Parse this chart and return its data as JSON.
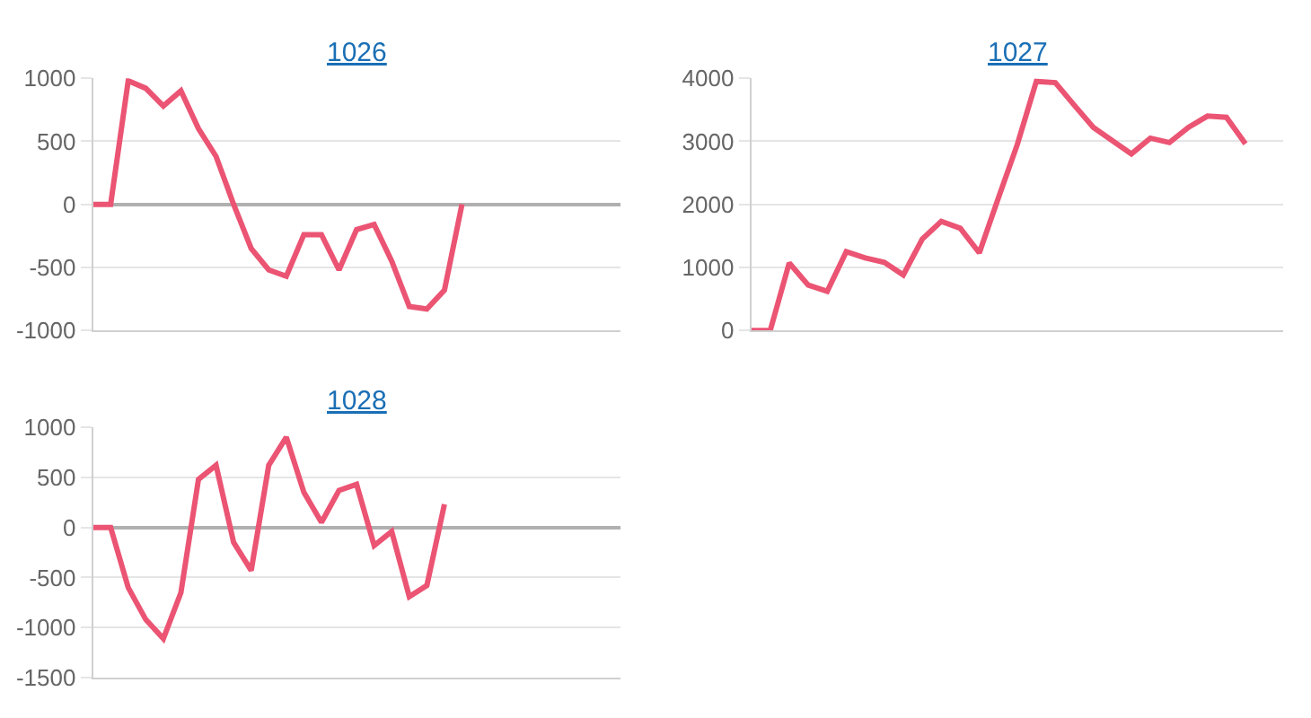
{
  "chart_data": [
    {
      "type": "line",
      "title": "1026",
      "categories": [
        null,
        null,
        null,
        null,
        null,
        null,
        null,
        null,
        null,
        null,
        null,
        null,
        null,
        null,
        null,
        null,
        null,
        null,
        null,
        null,
        null,
        null,
        null,
        null,
        null,
        null,
        null,
        null,
        null,
        null,
        null
      ],
      "series": [
        {
          "color": "#eb5473",
          "values": [
            0,
            0,
            980,
            920,
            780,
            900,
            600,
            380,
            0,
            -350,
            -520,
            -570,
            -240,
            -240,
            -520,
            -200,
            -160,
            -450,
            -810,
            -830,
            -680,
            0,
            null,
            null,
            null,
            null,
            null,
            null,
            null,
            null,
            null
          ]
        }
      ],
      "ylim": [
        -1000,
        1000
      ],
      "yticks": [
        -1000,
        -500,
        0,
        500,
        1000
      ],
      "grid": "y",
      "tick_labels": "y",
      "marker": "none"
    },
    {
      "type": "line",
      "title": "1027",
      "categories": [
        null,
        null,
        null,
        null,
        null,
        null,
        null,
        null,
        null,
        null,
        null,
        null,
        null,
        null,
        null,
        null,
        null,
        null,
        null,
        null,
        null,
        null,
        null,
        null,
        null,
        null,
        null,
        null,
        null
      ],
      "series": [
        {
          "color": "#eb5473",
          "values": [
            0,
            0,
            1070,
            720,
            620,
            1250,
            1150,
            1080,
            880,
            1450,
            1730,
            1620,
            1230,
            2100,
            2950,
            3950,
            3930,
            3570,
            3220,
            3010,
            2800,
            3050,
            2980,
            3220,
            3400,
            3380,
            2960,
            null,
            null
          ]
        }
      ],
      "ylim": [
        0,
        4000
      ],
      "yticks": [
        0,
        1000,
        2000,
        3000,
        4000
      ],
      "grid": "y",
      "tick_labels": "y",
      "marker": "none"
    },
    {
      "type": "line",
      "title": "1028",
      "categories": [
        null,
        null,
        null,
        null,
        null,
        null,
        null,
        null,
        null,
        null,
        null,
        null,
        null,
        null,
        null,
        null,
        null,
        null,
        null,
        null,
        null,
        null,
        null,
        null,
        null,
        null,
        null,
        null,
        null,
        null,
        null
      ],
      "series": [
        {
          "color": "#eb5473",
          "values": [
            0,
            0,
            -600,
            -920,
            -1110,
            -650,
            480,
            620,
            -150,
            -430,
            620,
            900,
            350,
            50,
            370,
            430,
            -180,
            -40,
            -690,
            -580,
            230,
            null,
            null,
            null,
            null,
            null,
            null,
            null,
            null,
            null,
            null
          ]
        }
      ],
      "ylim": [
        -1500,
        1000
      ],
      "yticks": [
        -1500,
        -1000,
        -500,
        0,
        500,
        1000
      ],
      "grid": "y",
      "tick_labels": "y",
      "marker": "none"
    }
  ]
}
